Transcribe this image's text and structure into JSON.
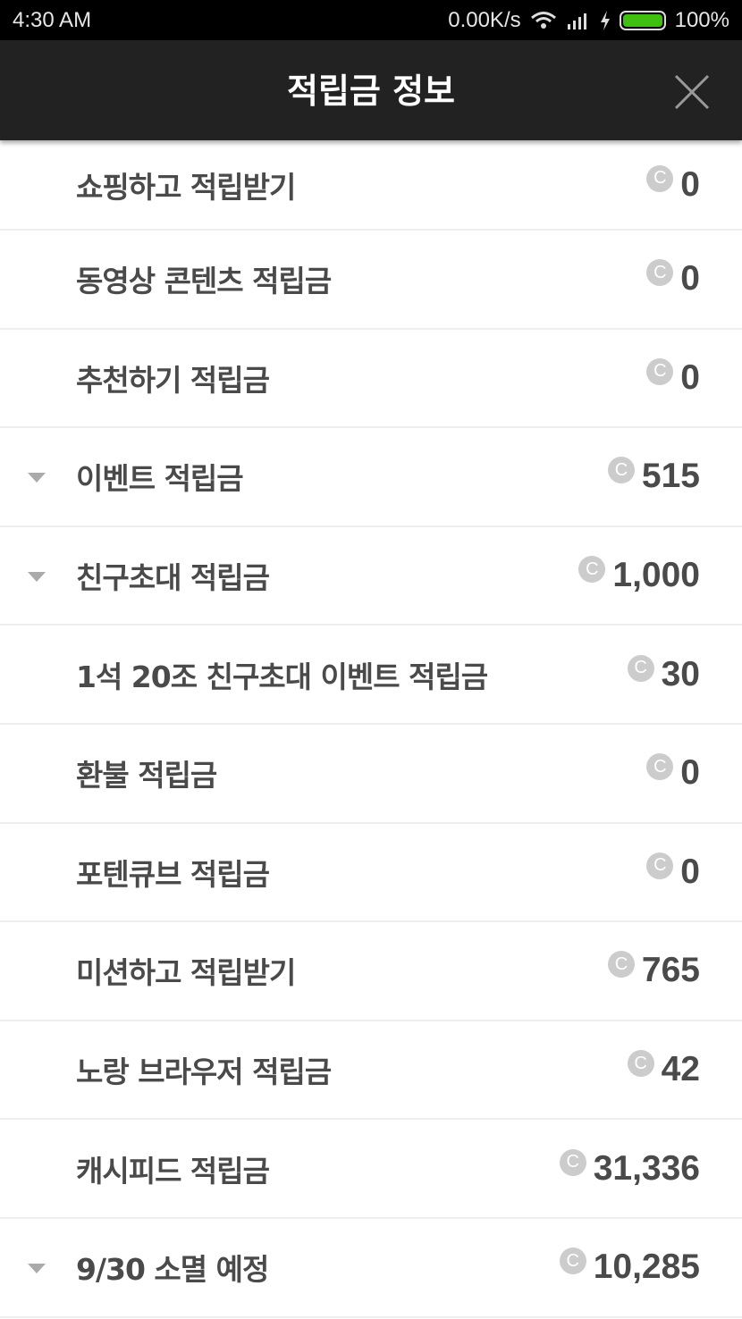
{
  "status_bar": {
    "time": "4:30  AM",
    "net_speed": "0.00K/s",
    "battery": "100%",
    "battery_level": 100,
    "icons": [
      "wifi-icon",
      "signal-icon",
      "charging-icon",
      "battery-icon"
    ]
  },
  "header": {
    "title": "적립금 정보",
    "close_icon": "close-icon"
  },
  "colors": {
    "header_bg": "#222222",
    "text": "#4a4a4a",
    "coin": "#cccccc",
    "battery": "#3fbf0f"
  },
  "items": [
    {
      "label": "쇼핑하고 적립받기",
      "value": "0",
      "expandable": false
    },
    {
      "label": "동영상 콘텐츠 적립금",
      "value": "0",
      "expandable": false
    },
    {
      "label": "추천하기 적립금",
      "value": "0",
      "expandable": false
    },
    {
      "label": "이벤트 적립금",
      "value": "515",
      "expandable": true
    },
    {
      "label": "친구초대 적립금",
      "value": "1,000",
      "expandable": true
    },
    {
      "label": "1석 20조 친구초대 이벤트 적립금",
      "value": "30",
      "expandable": false
    },
    {
      "label": "환불 적립금",
      "value": "0",
      "expandable": false
    },
    {
      "label": "포텐큐브 적립금",
      "value": "0",
      "expandable": false
    },
    {
      "label": "미션하고 적립받기",
      "value": "765",
      "expandable": false
    },
    {
      "label": "노랑 브라우저 적립금",
      "value": "42",
      "expandable": false
    },
    {
      "label": "캐시피드 적립금",
      "value": "31,336",
      "expandable": false
    },
    {
      "label": "9/30 소멸 예정",
      "value": "10,285",
      "expandable": true
    }
  ],
  "coin_symbol": "C"
}
